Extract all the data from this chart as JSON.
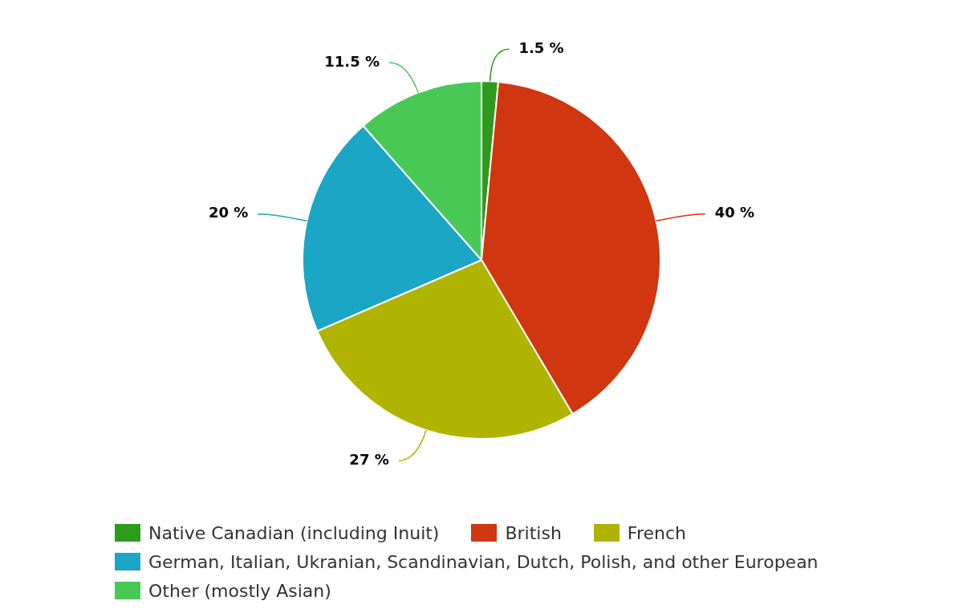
{
  "chart_data": {
    "type": "pie",
    "categories": [
      "Native Canadian (including Inuit)",
      "British",
      "French",
      "German, Italian, Ukranian, Scandinavian, Dutch, Polish, and other European",
      "Other (mostly Asian)"
    ],
    "values": [
      1.5,
      40,
      27,
      20,
      11.5
    ],
    "value_labels": [
      "1.5 %",
      "40 %",
      "27 %",
      "20 %",
      "11.5 %"
    ],
    "colors": [
      "#2e9a1e",
      "#d0360f",
      "#b0b400",
      "#1aa6c4",
      "#48c956"
    ],
    "legend": "bottom"
  }
}
